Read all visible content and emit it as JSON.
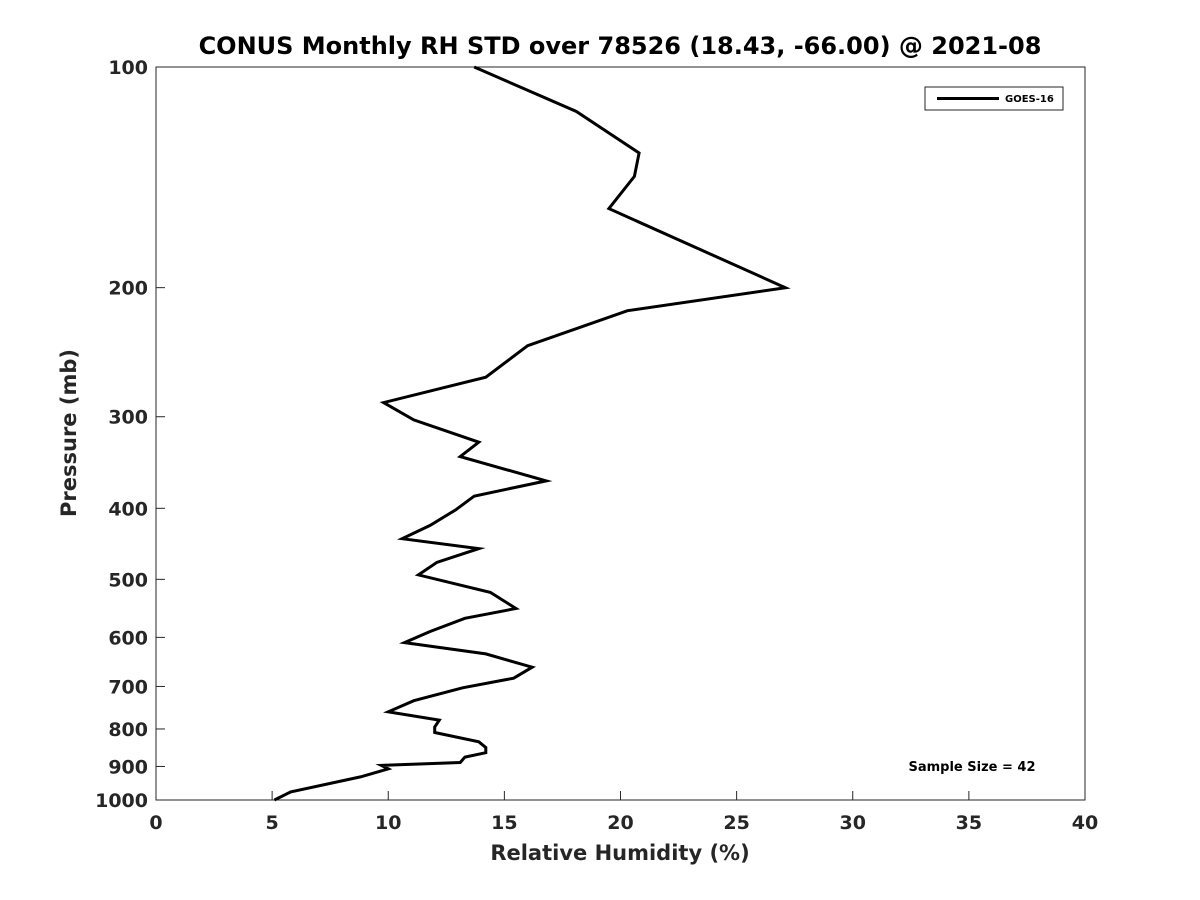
{
  "chart_data": {
    "type": "line",
    "title": "CONUS Monthly RH STD over 78526 (18.43, -66.00) @ 2021-08",
    "xlabel": "Relative Humidity (%)",
    "ylabel": "Pressure (mb)",
    "xlim": [
      0,
      40
    ],
    "ylim": [
      100,
      1000
    ],
    "y_scale": "log",
    "y_reversed": true,
    "x_ticks": [
      "0",
      "5",
      "10",
      "15",
      "20",
      "25",
      "30",
      "35",
      "40"
    ],
    "y_ticks": [
      "100",
      "200",
      "300",
      "400",
      "500",
      "600",
      "700",
      "800",
      "900",
      "1000"
    ],
    "grid": false,
    "legend_position": "top-right",
    "annotation": "Sample Size = 42",
    "series": [
      {
        "name": "GOES-16",
        "color": "#000000",
        "x": [
          13.7,
          18.1,
          20.8,
          20.6,
          19.5,
          27.1,
          20.3,
          16.0,
          14.2,
          9.8,
          11.1,
          13.9,
          13.1,
          16.8,
          13.7,
          12.9,
          11.8,
          10.6,
          13.9,
          12.1,
          11.3,
          14.4,
          15.5,
          13.3,
          11.8,
          10.7,
          14.2,
          16.2,
          15.4,
          13.2,
          11.1,
          10.0,
          12.2,
          12.0,
          12.0,
          13.9,
          14.2,
          14.2,
          13.3,
          13.1,
          9.7,
          10.0,
          8.8,
          5.8,
          5.1
        ],
        "y": [
          100,
          115,
          131,
          141,
          156,
          200,
          215,
          240,
          265,
          287,
          303,
          325,
          340,
          367,
          385,
          402,
          422,
          440,
          454,
          474,
          493,
          521,
          548,
          565,
          589,
          610,
          632,
          659,
          682,
          703,
          732,
          758,
          778,
          795,
          809,
          833,
          848,
          862,
          874,
          889,
          897,
          907,
          930,
          975,
          1000
        ]
      }
    ]
  }
}
